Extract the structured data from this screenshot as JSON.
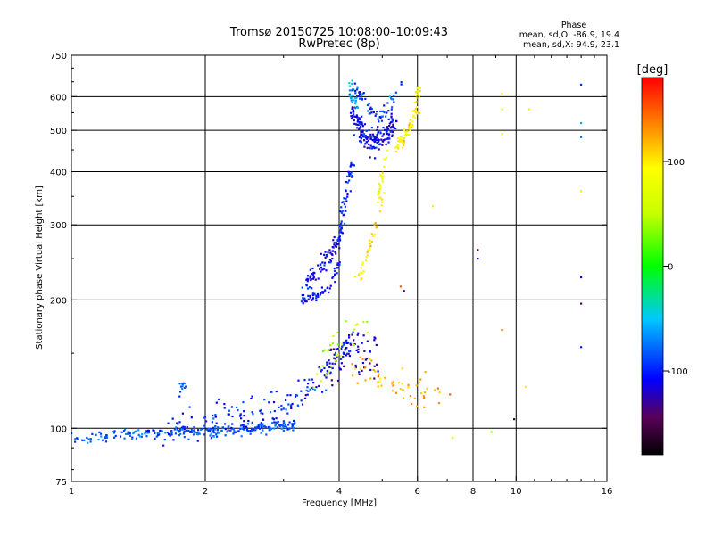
{
  "chart_data": {
    "type": "scatter",
    "title": "Tromsø 20150725 10:08:00–10:09:43",
    "subtitle": "RwPretec (8p)",
    "xlabel": "Frequency [MHz]",
    "ylabel": "Stationary phase Virtual Height [km]",
    "x_scale": "log",
    "y_scale": "log",
    "xlim": [
      1,
      16
    ],
    "ylim": [
      75,
      750
    ],
    "x_ticks": [
      1,
      2,
      4,
      6,
      8,
      10,
      16
    ],
    "y_ticks": [
      75,
      100,
      200,
      300,
      400,
      500,
      600,
      750
    ],
    "x_grid": [
      2,
      4,
      6,
      8,
      10
    ],
    "y_grid": [
      100,
      200,
      300,
      400,
      500,
      600
    ],
    "grid": true,
    "colorbar": {
      "label": "[deg]",
      "range": [
        -180,
        180
      ],
      "ticks": [
        100,
        0,
        -100
      ],
      "colormap": "rainbow"
    },
    "phase_stats": {
      "title": "Phase",
      "line_o": "mean, sd,O: -86.9, 19.4",
      "line_x": "mean, sd,X: 94.9, 23.1"
    },
    "traces": [
      {
        "name": "",
        "x": [
          1.0,
          1.2,
          1.4,
          1.6,
          1.8,
          2.0,
          2.3,
          2.6,
          2.9,
          3.2
        ],
        "y": [
          95,
          96,
          97,
          97,
          98,
          98,
          99,
          100,
          101,
          102
        ],
        "phase": -85,
        "jitter": 2.5,
        "n": 260
      },
      {
        "name": "",
        "x": [
          1.6,
          1.9,
          2.2,
          2.6,
          3.0,
          3.3,
          3.6,
          3.9,
          4.3
        ],
        "y": [
          100,
          104,
          106,
          109,
          113,
          120,
          130,
          145,
          160
        ],
        "phase": -100,
        "jitter": 9,
        "n": 170
      },
      {
        "name": "",
        "x": [
          1.75,
          1.78,
          1.8
        ],
        "y": [
          120,
          126,
          130
        ],
        "phase": -80,
        "jitter": 3,
        "n": 12
      },
      {
        "name": "",
        "x": [
          3.3,
          3.45,
          3.6,
          3.75,
          3.9,
          4.05
        ],
        "y": [
          205,
          220,
          235,
          250,
          262,
          285
        ],
        "phase": -110,
        "jitter": 10,
        "n": 80
      },
      {
        "name": "",
        "x": [
          3.3,
          3.45,
          3.6,
          3.75,
          3.9,
          4.0
        ],
        "y": [
          200,
          203,
          206,
          212,
          228,
          250
        ],
        "phase": -105,
        "jitter": 4,
        "n": 55
      },
      {
        "name": "",
        "x": [
          4.0,
          4.1,
          4.2,
          4.3
        ],
        "y": [
          280,
          330,
          380,
          420
        ],
        "phase": -100,
        "jitter": 8,
        "n": 50
      },
      {
        "name": "",
        "x": [
          4.25,
          4.4,
          4.6,
          4.8,
          5.0,
          5.2,
          5.35
        ],
        "y": [
          560,
          520,
          480,
          470,
          480,
          500,
          520
        ],
        "phase": -110,
        "jitter": 28,
        "n": 170
      },
      {
        "name": "",
        "x": [
          4.3,
          4.5,
          4.7,
          4.9,
          5.1,
          5.3,
          5.5
        ],
        "y": [
          640,
          600,
          560,
          530,
          550,
          590,
          640
        ],
        "phase": -95,
        "jitter": 20,
        "n": 60
      },
      {
        "name": "",
        "x": [
          4.2,
          4.3,
          4.4
        ],
        "y": [
          640,
          600,
          560
        ],
        "phase": -60,
        "jitter": 25,
        "n": 25
      },
      {
        "name": "",
        "x": [
          3.8,
          4.0,
          4.3,
          4.6,
          4.9
        ],
        "y": [
          140,
          145,
          150,
          150,
          148
        ],
        "phase": -120,
        "jitter": 18,
        "n": 60
      },
      {
        "name": "",
        "x": [
          4.4,
          4.55,
          4.7,
          4.85,
          5.0
        ],
        "y": [
          225,
          240,
          270,
          300,
          350
        ],
        "phase": 100,
        "jitter": 8,
        "n": 38
      },
      {
        "name": "",
        "x": [
          4.9,
          5.0,
          5.1
        ],
        "y": [
          350,
          390,
          440
        ],
        "phase": 85,
        "jitter": 12,
        "n": 22
      },
      {
        "name": "",
        "x": [
          5.4,
          5.6,
          5.8,
          6.0
        ],
        "y": [
          460,
          480,
          520,
          570
        ],
        "phase": 95,
        "jitter": 18,
        "n": 60
      },
      {
        "name": "",
        "x": [
          6.0,
          6.05
        ],
        "y": [
          600,
          630
        ],
        "phase": 90,
        "jitter": 12,
        "n": 12
      },
      {
        "name": "",
        "x": [
          4.3,
          4.6,
          4.9,
          5.3,
          5.7,
          6.2,
          6.8
        ],
        "y": [
          135,
          140,
          130,
          128,
          124,
          120,
          118
        ],
        "phase": 120,
        "jitter": 10,
        "n": 55
      },
      {
        "name": "",
        "x": [
          3.5,
          3.9,
          4.3,
          4.8
        ],
        "y": [
          130,
          150,
          170,
          190
        ],
        "phase": 50,
        "jitter": 15,
        "n": 30
      }
    ],
    "isolated_points": [
      {
        "x": 8.2,
        "y": 250,
        "phase": -110
      },
      {
        "x": 8.2,
        "y": 262,
        "phase": -150
      },
      {
        "x": 6.5,
        "y": 332,
        "phase": 100
      },
      {
        "x": 7.1,
        "y": 120,
        "phase": 150
      },
      {
        "x": 7.2,
        "y": 95,
        "phase": 100
      },
      {
        "x": 8.8,
        "y": 98,
        "phase": 30
      },
      {
        "x": 9.3,
        "y": 610,
        "phase": 100
      },
      {
        "x": 9.3,
        "y": 560,
        "phase": 100
      },
      {
        "x": 9.3,
        "y": 490,
        "phase": 100
      },
      {
        "x": 9.3,
        "y": 170,
        "phase": 150
      },
      {
        "x": 9.9,
        "y": 105,
        "phase": -150
      },
      {
        "x": 10.5,
        "y": 125,
        "phase": 100
      },
      {
        "x": 10.7,
        "y": 560,
        "phase": 100
      },
      {
        "x": 14.0,
        "y": 640,
        "phase": -95
      },
      {
        "x": 14.0,
        "y": 520,
        "phase": -60
      },
      {
        "x": 14.0,
        "y": 482,
        "phase": -75
      },
      {
        "x": 14.0,
        "y": 360,
        "phase": 100
      },
      {
        "x": 14.0,
        "y": 226,
        "phase": -115
      },
      {
        "x": 14.0,
        "y": 196,
        "phase": -140
      },
      {
        "x": 14.0,
        "y": 155,
        "phase": -100
      },
      {
        "x": 5.5,
        "y": 215,
        "phase": 150
      },
      {
        "x": 5.6,
        "y": 210,
        "phase": -140
      },
      {
        "x": 6.2,
        "y": 119,
        "phase": 130
      },
      {
        "x": 6.0,
        "y": 628,
        "phase": 80
      },
      {
        "x": 5.2,
        "y": 600,
        "phase": -50
      }
    ]
  }
}
